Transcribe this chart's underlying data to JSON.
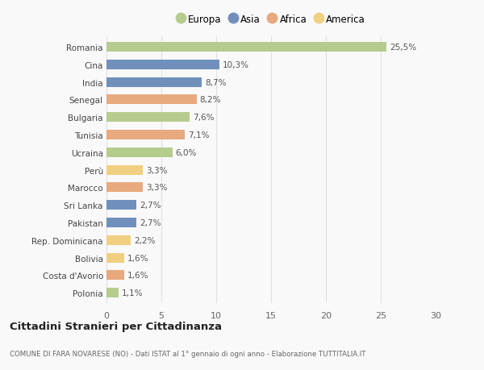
{
  "countries": [
    "Romania",
    "Cina",
    "India",
    "Senegal",
    "Bulgaria",
    "Tunisia",
    "Ucraina",
    "Perù",
    "Marocco",
    "Sri Lanka",
    "Pakistan",
    "Rep. Dominicana",
    "Bolivia",
    "Costa d'Avorio",
    "Polonia"
  ],
  "values": [
    25.5,
    10.3,
    8.7,
    8.2,
    7.6,
    7.1,
    6.0,
    3.3,
    3.3,
    2.7,
    2.7,
    2.2,
    1.6,
    1.6,
    1.1
  ],
  "labels": [
    "25,5%",
    "10,3%",
    "8,7%",
    "8,2%",
    "7,6%",
    "7,1%",
    "6,0%",
    "3,3%",
    "3,3%",
    "2,7%",
    "2,7%",
    "2,2%",
    "1,6%",
    "1,6%",
    "1,1%"
  ],
  "continents": [
    "Europa",
    "Asia",
    "Asia",
    "Africa",
    "Europa",
    "Africa",
    "Europa",
    "America",
    "Africa",
    "Asia",
    "Asia",
    "America",
    "America",
    "Africa",
    "Europa"
  ],
  "colors": {
    "Europa": "#b5cc8e",
    "Asia": "#7090bb",
    "Africa": "#e8a97e",
    "America": "#f0d080"
  },
  "legend_order": [
    "Europa",
    "Asia",
    "Africa",
    "America"
  ],
  "title": "Cittadini Stranieri per Cittadinanza",
  "subtitle": "COMUNE DI FARA NOVARESE (NO) - Dati ISTAT al 1° gennaio di ogni anno - Elaborazione TUTTITALIA.IT",
  "xlim": [
    0,
    30
  ],
  "xticks": [
    0,
    5,
    10,
    15,
    20,
    25,
    30
  ],
  "background_color": "#f9f9f9",
  "grid_color": "#e0e0e0"
}
